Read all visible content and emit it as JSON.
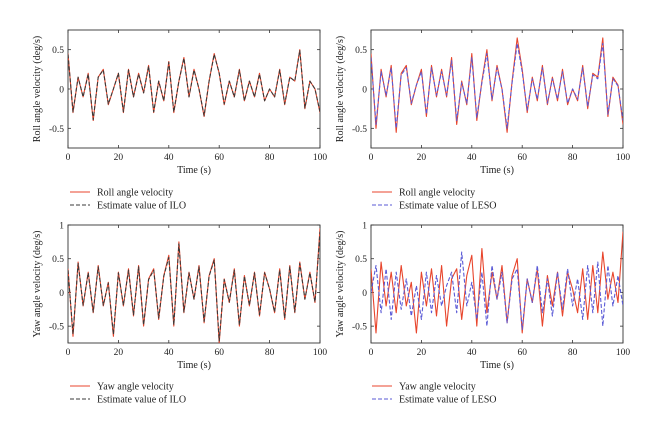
{
  "chart_data": [
    {
      "type": "line",
      "xlabel": "Time (s)",
      "ylabel": "Roll angle velocity (deg/s)",
      "xlim": [
        0,
        100
      ],
      "ylim": [
        -0.75,
        0.75
      ],
      "xticks": [
        "0",
        "20",
        "40",
        "60",
        "80",
        "100"
      ],
      "yticks": [
        "-0.5",
        "0",
        "0.5"
      ],
      "legend": "bottom-left",
      "series": [
        {
          "name": "Roll angle velocity",
          "color": "#e8452c",
          "dash": "solid",
          "x": [
            0,
            2,
            4,
            6,
            8,
            10,
            12,
            14,
            16,
            18,
            20,
            22,
            24,
            26,
            28,
            30,
            32,
            34,
            36,
            38,
            40,
            42,
            44,
            46,
            48,
            50,
            52,
            54,
            56,
            58,
            60,
            62,
            64,
            66,
            68,
            70,
            72,
            74,
            76,
            78,
            80,
            82,
            84,
            86,
            88,
            90,
            92,
            94,
            96,
            98,
            100
          ],
          "values": [
            0.45,
            -0.3,
            0.15,
            -0.1,
            0.2,
            -0.4,
            0.15,
            0.25,
            -0.2,
            0.0,
            0.2,
            -0.3,
            0.25,
            -0.1,
            0.2,
            -0.05,
            0.3,
            -0.3,
            0.1,
            -0.15,
            0.35,
            -0.3,
            0.1,
            0.4,
            -0.1,
            0.25,
            0.0,
            -0.35,
            0.1,
            0.45,
            0.2,
            -0.2,
            0.1,
            -0.1,
            0.25,
            -0.15,
            0.1,
            -0.1,
            0.2,
            -0.15,
            0.0,
            -0.1,
            0.25,
            -0.2,
            0.15,
            0.1,
            0.5,
            -0.25,
            0.1,
            0.0,
            -0.3
          ]
        },
        {
          "name": "Estimate value of ILO",
          "color": "#3a3a3a",
          "dash": "dashed",
          "x": [
            0,
            2,
            4,
            6,
            8,
            10,
            12,
            14,
            16,
            18,
            20,
            22,
            24,
            26,
            28,
            30,
            32,
            34,
            36,
            38,
            40,
            42,
            44,
            46,
            48,
            50,
            52,
            54,
            56,
            58,
            60,
            62,
            64,
            66,
            68,
            70,
            72,
            74,
            76,
            78,
            80,
            82,
            84,
            86,
            88,
            90,
            92,
            94,
            96,
            98,
            100
          ],
          "values": [
            0.44,
            -0.29,
            0.15,
            -0.1,
            0.19,
            -0.39,
            0.15,
            0.24,
            -0.19,
            0.0,
            0.2,
            -0.29,
            0.24,
            -0.1,
            0.19,
            -0.05,
            0.29,
            -0.29,
            0.1,
            -0.15,
            0.34,
            -0.29,
            0.1,
            0.39,
            -0.1,
            0.24,
            0.0,
            -0.34,
            0.1,
            0.44,
            0.2,
            -0.19,
            0.1,
            -0.1,
            0.24,
            -0.15,
            0.1,
            -0.1,
            0.19,
            -0.15,
            0.0,
            -0.1,
            0.24,
            -0.19,
            0.15,
            0.1,
            0.49,
            -0.24,
            0.1,
            0.0,
            -0.29
          ]
        }
      ]
    },
    {
      "type": "line",
      "xlabel": "Time (s)",
      "ylabel": "Roll angle velocity (deg/s)",
      "xlim": [
        0,
        100
      ],
      "ylim": [
        -0.75,
        0.75
      ],
      "xticks": [
        "0",
        "20",
        "40",
        "60",
        "80",
        "100"
      ],
      "yticks": [
        "-0.5",
        "0",
        "0.5"
      ],
      "legend": "bottom-left",
      "series": [
        {
          "name": "Roll angle velocity",
          "color": "#e8452c",
          "dash": "solid",
          "x": [
            0,
            2,
            4,
            6,
            8,
            10,
            12,
            14,
            16,
            18,
            20,
            22,
            24,
            26,
            28,
            30,
            32,
            34,
            36,
            38,
            40,
            42,
            44,
            46,
            48,
            50,
            52,
            54,
            56,
            58,
            60,
            62,
            64,
            66,
            68,
            70,
            72,
            74,
            76,
            78,
            80,
            82,
            84,
            86,
            88,
            90,
            92,
            94,
            96,
            98,
            100
          ],
          "values": [
            0.45,
            -0.5,
            0.25,
            -0.1,
            0.3,
            -0.55,
            0.2,
            0.3,
            -0.2,
            0.05,
            0.25,
            -0.35,
            0.3,
            -0.1,
            0.25,
            -0.1,
            0.4,
            -0.45,
            0.1,
            -0.2,
            0.45,
            -0.4,
            0.1,
            0.5,
            -0.15,
            0.3,
            0.0,
            -0.55,
            0.1,
            0.65,
            0.25,
            -0.3,
            0.15,
            -0.15,
            0.3,
            -0.2,
            0.15,
            -0.15,
            0.25,
            -0.2,
            0.0,
            -0.15,
            0.3,
            -0.25,
            0.2,
            0.15,
            0.65,
            -0.35,
            0.15,
            0.05,
            -0.45
          ]
        },
        {
          "name": "Estimate value of LESO",
          "color": "#5a5ad6",
          "dash": "dashed",
          "x": [
            0,
            2,
            4,
            6,
            8,
            10,
            12,
            14,
            16,
            18,
            20,
            22,
            24,
            26,
            28,
            30,
            32,
            34,
            36,
            38,
            40,
            42,
            44,
            46,
            48,
            50,
            52,
            54,
            56,
            58,
            60,
            62,
            64,
            66,
            68,
            70,
            72,
            74,
            76,
            78,
            80,
            82,
            84,
            86,
            88,
            90,
            92,
            94,
            96,
            98,
            100
          ],
          "values": [
            0.4,
            -0.45,
            0.22,
            -0.08,
            0.27,
            -0.5,
            0.18,
            0.27,
            -0.18,
            0.05,
            0.22,
            -0.32,
            0.27,
            -0.08,
            0.22,
            -0.08,
            0.36,
            -0.4,
            0.08,
            -0.18,
            0.4,
            -0.36,
            0.08,
            0.45,
            -0.13,
            0.27,
            0.0,
            -0.5,
            0.08,
            0.58,
            0.22,
            -0.27,
            0.13,
            -0.13,
            0.27,
            -0.18,
            0.13,
            -0.13,
            0.22,
            -0.18,
            0.0,
            -0.13,
            0.27,
            -0.22,
            0.18,
            0.13,
            0.58,
            -0.32,
            0.13,
            0.04,
            -0.4
          ]
        }
      ]
    },
    {
      "type": "line",
      "xlabel": "Time (s)",
      "ylabel": "Yaw angle velocity (deg/s)",
      "xlim": [
        0,
        100
      ],
      "ylim": [
        -0.75,
        1.0
      ],
      "xticks": [
        "0",
        "20",
        "40",
        "60",
        "80",
        "100"
      ],
      "yticks": [
        "-0.5",
        "0",
        "0.5",
        "1"
      ],
      "legend": "bottom-left",
      "series": [
        {
          "name": "Yaw angle velocity",
          "color": "#e8452c",
          "dash": "solid",
          "x": [
            0,
            2,
            4,
            6,
            8,
            10,
            12,
            14,
            16,
            18,
            20,
            22,
            24,
            26,
            28,
            30,
            32,
            34,
            36,
            38,
            40,
            42,
            44,
            46,
            48,
            50,
            52,
            54,
            56,
            58,
            60,
            62,
            64,
            66,
            68,
            70,
            72,
            74,
            76,
            78,
            80,
            82,
            84,
            86,
            88,
            90,
            92,
            94,
            96,
            98,
            100
          ],
          "values": [
            0.35,
            -0.65,
            0.45,
            -0.2,
            0.3,
            -0.3,
            0.4,
            -0.2,
            0.15,
            -0.65,
            0.3,
            -0.2,
            0.35,
            -0.35,
            0.4,
            -0.5,
            0.2,
            0.35,
            -0.4,
            0.25,
            0.55,
            -0.5,
            0.75,
            -0.3,
            0.3,
            -0.1,
            0.4,
            -0.45,
            0.25,
            0.5,
            -0.75,
            0.2,
            -0.15,
            0.35,
            -0.5,
            0.25,
            -0.2,
            0.3,
            -0.35,
            0.3,
            0.05,
            -0.3,
            0.35,
            -0.4,
            0.4,
            -0.3,
            0.45,
            -0.1,
            0.3,
            -0.15,
            0.95
          ]
        },
        {
          "name": "Estimate value of ILO",
          "color": "#3a3a3a",
          "dash": "dashed",
          "x": [
            0,
            2,
            4,
            6,
            8,
            10,
            12,
            14,
            16,
            18,
            20,
            22,
            24,
            26,
            28,
            30,
            32,
            34,
            36,
            38,
            40,
            42,
            44,
            46,
            48,
            50,
            52,
            54,
            56,
            58,
            60,
            62,
            64,
            66,
            68,
            70,
            72,
            74,
            76,
            78,
            80,
            82,
            84,
            86,
            88,
            90,
            92,
            94,
            96,
            98,
            100
          ],
          "values": [
            0.33,
            -0.62,
            0.43,
            -0.19,
            0.29,
            -0.29,
            0.38,
            -0.19,
            0.14,
            -0.62,
            0.29,
            -0.19,
            0.33,
            -0.33,
            0.38,
            -0.48,
            0.19,
            0.33,
            -0.38,
            0.24,
            0.52,
            -0.48,
            0.72,
            -0.29,
            0.29,
            -0.1,
            0.38,
            -0.43,
            0.24,
            0.48,
            -0.72,
            0.19,
            -0.14,
            0.33,
            -0.48,
            0.24,
            -0.19,
            0.29,
            -0.33,
            0.29,
            0.05,
            -0.29,
            0.33,
            -0.38,
            0.38,
            -0.29,
            0.43,
            -0.1,
            0.29,
            -0.14,
            0.9
          ]
        }
      ]
    },
    {
      "type": "line",
      "xlabel": "Time (s)",
      "ylabel": "Yaw angle velocity (deg/s)",
      "xlim": [
        0,
        100
      ],
      "ylim": [
        -0.75,
        1.0
      ],
      "xticks": [
        "0",
        "20",
        "40",
        "60",
        "80",
        "100"
      ],
      "yticks": [
        "-0.5",
        "0",
        "0.5",
        "1"
      ],
      "legend": "bottom-left",
      "series": [
        {
          "name": "Yaw angle velocity",
          "color": "#e8452c",
          "dash": "solid",
          "x": [
            0,
            2,
            4,
            6,
            8,
            10,
            12,
            14,
            16,
            18,
            20,
            22,
            24,
            26,
            28,
            30,
            32,
            34,
            36,
            38,
            40,
            42,
            44,
            46,
            48,
            50,
            52,
            54,
            56,
            58,
            60,
            62,
            64,
            66,
            68,
            70,
            72,
            74,
            76,
            78,
            80,
            82,
            84,
            86,
            88,
            90,
            92,
            94,
            96,
            98,
            100
          ],
          "values": [
            0.35,
            -0.6,
            0.45,
            -0.2,
            0.3,
            -0.3,
            0.4,
            -0.2,
            0.15,
            -0.6,
            0.3,
            -0.2,
            0.35,
            -0.35,
            0.4,
            -0.5,
            0.2,
            0.35,
            -0.4,
            0.25,
            0.55,
            -0.5,
            0.65,
            -0.3,
            0.3,
            -0.1,
            0.4,
            -0.45,
            0.25,
            0.5,
            -0.6,
            0.2,
            -0.15,
            0.35,
            -0.5,
            0.25,
            -0.2,
            0.3,
            -0.35,
            0.3,
            0.05,
            -0.3,
            0.35,
            -0.4,
            0.4,
            -0.3,
            0.6,
            -0.1,
            0.3,
            -0.15,
            0.9
          ]
        },
        {
          "name": "Estimate value of LESO",
          "color": "#5a5ad6",
          "dash": "dashed",
          "x": [
            0,
            2,
            4,
            6,
            8,
            10,
            12,
            14,
            16,
            18,
            20,
            22,
            24,
            26,
            28,
            30,
            32,
            34,
            36,
            38,
            40,
            42,
            44,
            46,
            48,
            50,
            52,
            54,
            56,
            58,
            60,
            62,
            64,
            66,
            68,
            70,
            72,
            74,
            76,
            78,
            80,
            82,
            84,
            86,
            88,
            90,
            92,
            94,
            96,
            98,
            100
          ],
          "values": [
            0.0,
            0.4,
            -0.3,
            0.35,
            -0.4,
            0.3,
            -0.25,
            0.2,
            -0.35,
            0.1,
            -0.4,
            0.3,
            -0.3,
            0.25,
            -0.2,
            0.1,
            0.3,
            -0.3,
            0.6,
            -0.2,
            0.15,
            -0.4,
            0.3,
            -0.5,
            0.4,
            -0.1,
            0.3,
            -0.45,
            0.2,
            0.35,
            -0.55,
            0.2,
            -0.15,
            0.4,
            -0.3,
            0.2,
            -0.35,
            0.3,
            -0.25,
            0.35,
            -0.2,
            0.2,
            -0.4,
            0.4,
            -0.3,
            0.45,
            -0.5,
            0.4,
            -0.2,
            0.25,
            -0.2
          ]
        }
      ]
    }
  ]
}
